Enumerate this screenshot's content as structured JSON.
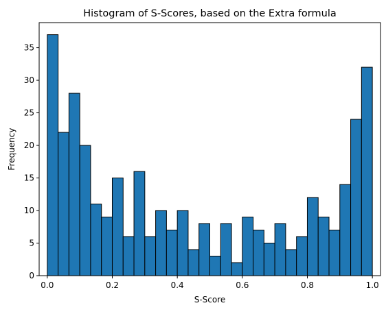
{
  "chart_data": {
    "type": "bar",
    "title": "Histogram of S-Scores, based on the Extra formula",
    "xlabel": "S-Score",
    "ylabel": "Frequency",
    "xlim": [
      -0.025,
      1.025
    ],
    "ylim": [
      0,
      38.85
    ],
    "x_ticks": [
      0.0,
      0.2,
      0.4,
      0.6,
      0.8,
      1.0
    ],
    "x_tick_labels": [
      "0.0",
      "0.2",
      "0.4",
      "0.6",
      "0.8",
      "1.0"
    ],
    "y_ticks": [
      0,
      5,
      10,
      15,
      20,
      25,
      30,
      35
    ],
    "y_tick_labels": [
      "0",
      "5",
      "10",
      "15",
      "20",
      "25",
      "30",
      "35"
    ],
    "bin_start": 0.0,
    "bin_width": 0.03333,
    "values": [
      37,
      22,
      28,
      20,
      11,
      9,
      15,
      6,
      16,
      6,
      10,
      7,
      10,
      4,
      8,
      3,
      8,
      2,
      9,
      7,
      5,
      8,
      4,
      6,
      12,
      9,
      7,
      14,
      24,
      32
    ],
    "bar_color": "#1f77b4",
    "edge_color": "#000000",
    "grid": false,
    "legend": "none"
  }
}
